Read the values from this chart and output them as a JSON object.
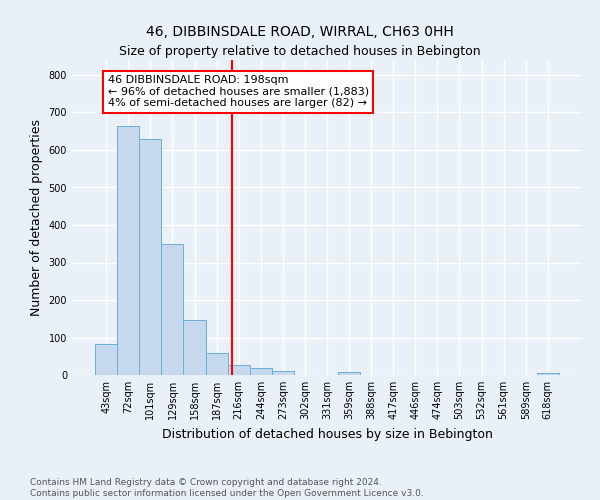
{
  "title": "46, DIBBINSDALE ROAD, WIRRAL, CH63 0HH",
  "subtitle": "Size of property relative to detached houses in Bebington",
  "bar_labels": [
    "43sqm",
    "72sqm",
    "101sqm",
    "129sqm",
    "158sqm",
    "187sqm",
    "216sqm",
    "244sqm",
    "273sqm",
    "302sqm",
    "331sqm",
    "359sqm",
    "388sqm",
    "417sqm",
    "446sqm",
    "474sqm",
    "503sqm",
    "532sqm",
    "561sqm",
    "589sqm",
    "618sqm"
  ],
  "bar_values": [
    82,
    665,
    630,
    348,
    148,
    60,
    28,
    18,
    10,
    0,
    0,
    8,
    0,
    0,
    0,
    0,
    0,
    0,
    0,
    0,
    5
  ],
  "bar_color": "#c5d8ed",
  "bar_edge_color": "#6aaed6",
  "vline_x": 5.68,
  "vline_color": "red",
  "annotation_text": "46 DIBBINSDALE ROAD: 198sqm\n← 96% of detached houses are smaller (1,883)\n4% of semi-detached houses are larger (82) →",
  "annotation_box_color": "red",
  "ylabel": "Number of detached properties",
  "xlabel": "Distribution of detached houses by size in Bebington",
  "ylim": [
    0,
    840
  ],
  "yticks": [
    0,
    100,
    200,
    300,
    400,
    500,
    600,
    700,
    800
  ],
  "footer_line1": "Contains HM Land Registry data © Crown copyright and database right 2024.",
  "footer_line2": "Contains public sector information licensed under the Open Government Licence v3.0.",
  "bg_color": "#eaf0f8",
  "plot_bg_color": "#eaf0f8",
  "grid_color": "white",
  "title_fontsize": 10,
  "subtitle_fontsize": 9,
  "axis_label_fontsize": 9,
  "tick_fontsize": 7,
  "annotation_fontsize": 8,
  "footer_fontsize": 6.5
}
